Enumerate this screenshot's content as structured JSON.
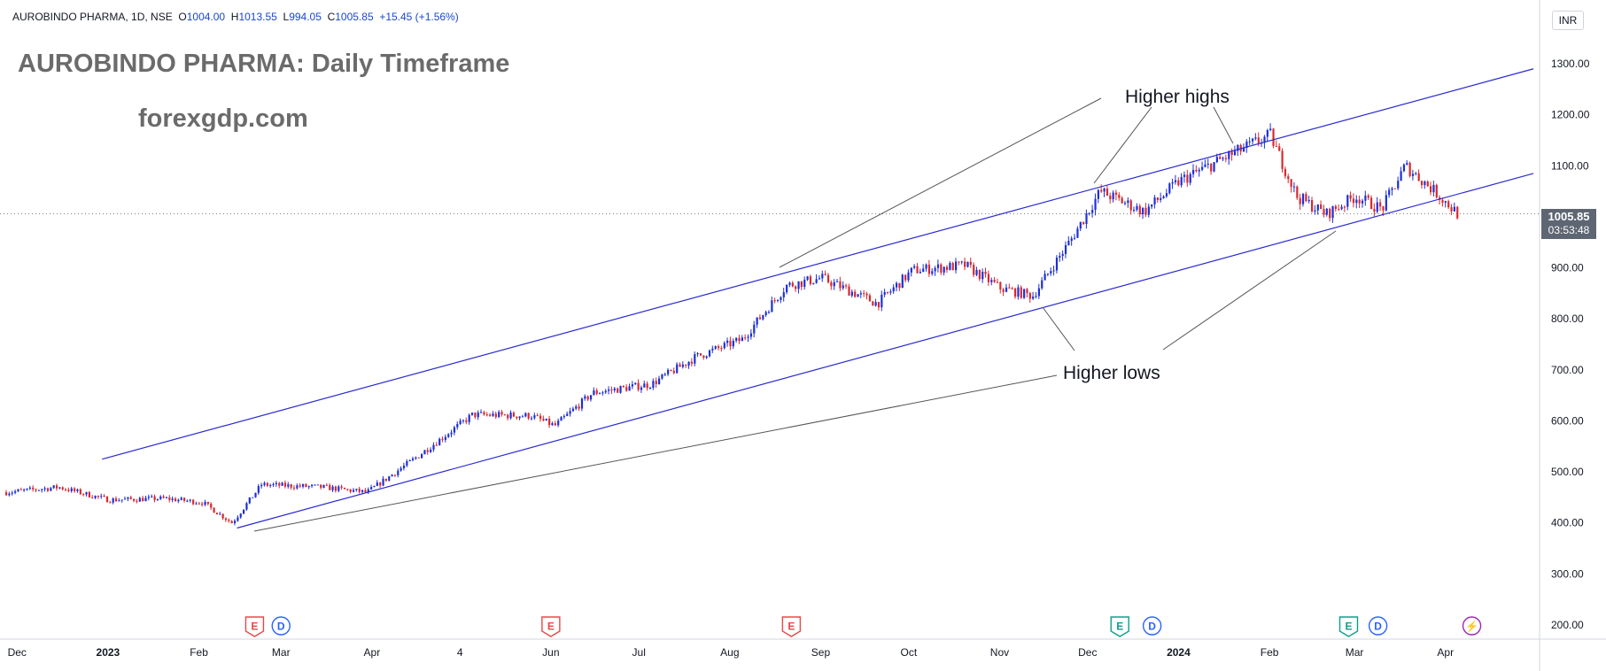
{
  "header": {
    "symbol": "AUROBINDO PHARMA, 1D, NSE",
    "open_label": "O",
    "open": "1004.00",
    "high_label": "H",
    "high": "1013.55",
    "low_label": "L",
    "low": "994.05",
    "close_label": "C",
    "close": "1005.85",
    "change": "+15.45 (+1.56%)"
  },
  "title": "AUROBINDO PHARMA: Daily Timeframe",
  "site": "forexgdp.com",
  "currency": "INR",
  "last_price": "1005.85",
  "countdown": "03:53:48",
  "colors": {
    "up": "#1c2fd6",
    "down": "#d8282e",
    "trendline": "#2a2ad0",
    "annotation_line": "#555555",
    "price_box": "#5e6673"
  },
  "chart_data": {
    "type": "candlestick",
    "title": "AUROBINDO PHARMA: Daily Timeframe",
    "ylim": [
      180,
      1330
    ],
    "y_ticks": [
      "1300.00",
      "1200.00",
      "1100.00",
      "1000.00",
      "900.00",
      "800.00",
      "700.00",
      "600.00",
      "500.00",
      "400.00",
      "300.00",
      "200.00"
    ],
    "x_ticks": [
      "Dec",
      "2023",
      "Feb",
      "Mar",
      "Apr",
      "4",
      "Jun",
      "Jul",
      "Aug",
      "Sep",
      "Oct",
      "Nov",
      "Dec",
      "2024",
      "Feb",
      "Mar",
      "Apr"
    ],
    "bold_x_ticks": [
      "2023",
      "2024"
    ],
    "price_path": [
      [
        "2022-11-27",
        460
      ],
      [
        "2022-12-15",
        470
      ],
      [
        "2023-01-01",
        445
      ],
      [
        "2023-01-20",
        448
      ],
      [
        "2023-02-02",
        440
      ],
      [
        "2023-02-12",
        400
      ],
      [
        "2023-02-22",
        475
      ],
      [
        "2023-03-15",
        470
      ],
      [
        "2023-03-30",
        460
      ],
      [
        "2023-04-15",
        525
      ],
      [
        "2023-05-05",
        612
      ],
      [
        "2023-05-25",
        610
      ],
      [
        "2023-06-02",
        590
      ],
      [
        "2023-06-15",
        655
      ],
      [
        "2023-07-05",
        672
      ],
      [
        "2023-07-20",
        725
      ],
      [
        "2023-08-05",
        760
      ],
      [
        "2023-08-20",
        865
      ],
      [
        "2023-09-01",
        880
      ],
      [
        "2023-09-20",
        830
      ],
      [
        "2023-10-02",
        895
      ],
      [
        "2023-10-20",
        905
      ],
      [
        "2023-11-01",
        860
      ],
      [
        "2023-11-12",
        845
      ],
      [
        "2023-11-25",
        955
      ],
      [
        "2023-12-05",
        1050
      ],
      [
        "2023-12-20",
        1010
      ],
      [
        "2024-01-01",
        1070
      ],
      [
        "2024-01-18",
        1120
      ],
      [
        "2024-02-01",
        1160
      ],
      [
        "2024-02-10",
        1040
      ],
      [
        "2024-02-20",
        1005
      ],
      [
        "2024-03-01",
        1040
      ],
      [
        "2024-03-10",
        1015
      ],
      [
        "2024-03-18",
        1100
      ],
      [
        "2024-03-28",
        1050
      ],
      [
        "2024-04-05",
        1005
      ]
    ],
    "trendlines": [
      {
        "name": "upper-channel",
        "from": [
          "2022-12-30",
          525
        ],
        "to": [
          "2024-05-01",
          1290
        ]
      },
      {
        "name": "lower-channel",
        "from": [
          "2023-02-14",
          390
        ],
        "to": [
          "2024-05-01",
          1085
        ]
      }
    ],
    "annotations": [
      {
        "text": "Higher highs",
        "at": [
          "2023-12-10",
          1095
        ]
      },
      {
        "text": "Higher lows",
        "at": [
          "2023-12-10",
          755
        ]
      }
    ],
    "event_markers": [
      {
        "label": "E",
        "color": "#e84848",
        "date": "2023-02-20"
      },
      {
        "label": "D",
        "color": "#2962ff",
        "date": "2023-03-01"
      },
      {
        "label": "E",
        "color": "#e84848",
        "date": "2023-06-01"
      },
      {
        "label": "E",
        "color": "#e84848",
        "date": "2023-08-22"
      },
      {
        "label": "E",
        "color": "#0e9f8b",
        "date": "2023-12-12"
      },
      {
        "label": "D",
        "color": "#2962ff",
        "date": "2023-12-23"
      },
      {
        "label": "E",
        "color": "#0e9f8b",
        "date": "2024-02-28"
      },
      {
        "label": "D",
        "color": "#2962ff",
        "date": "2024-03-09"
      },
      {
        "label": "⚡",
        "color": "#9c27b0",
        "date": "2024-04-10"
      }
    ]
  }
}
